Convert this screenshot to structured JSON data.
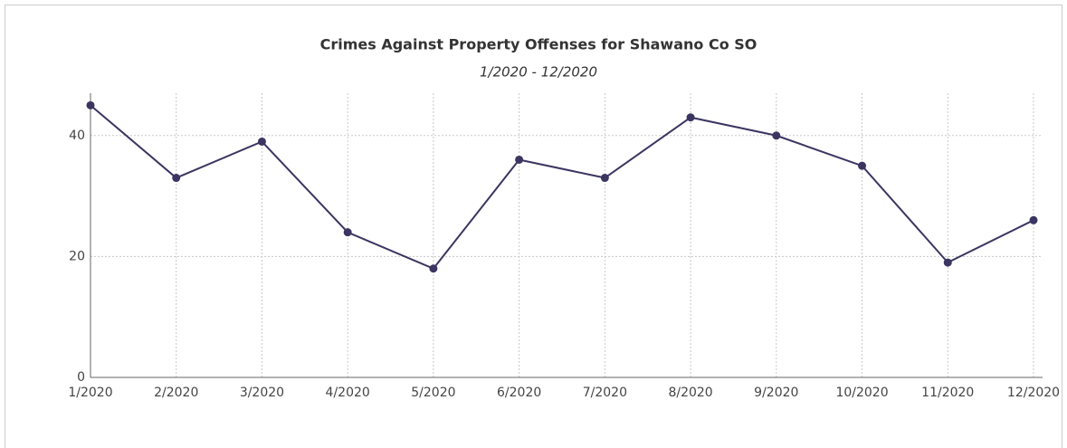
{
  "chart_data": {
    "type": "line",
    "title": "Crimes Against Property Offenses for Shawano Co SO",
    "subtitle": "1/2020 - 12/2020",
    "categories": [
      "1/2020",
      "2/2020",
      "3/2020",
      "4/2020",
      "5/2020",
      "6/2020",
      "7/2020",
      "8/2020",
      "9/2020",
      "10/2020",
      "11/2020",
      "12/2020"
    ],
    "values": [
      45,
      33,
      39,
      24,
      18,
      36,
      33,
      43,
      40,
      35,
      19,
      26
    ],
    "color": "#3b3561",
    "ylim": [
      0,
      47
    ],
    "yticks": [
      0,
      20,
      40
    ],
    "grid": true
  }
}
